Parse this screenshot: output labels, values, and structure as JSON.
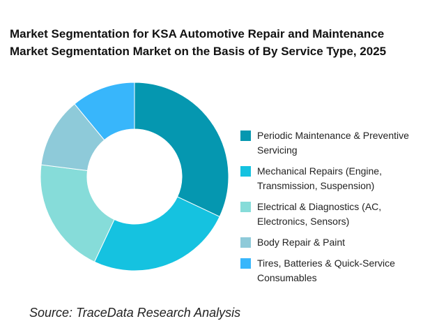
{
  "chart_data": {
    "type": "pie",
    "donut": true,
    "title_lines": [
      "Market Segmentation for KSA Automotive Repair and Maintenance",
      "Market Segmentation Market on the Basis of By Service Type, 2025"
    ],
    "categories": [
      "Periodic Maintenance & Preventive Servicing",
      "Mechanical Repairs (Engine, Transmission, Suspension)",
      "Electrical & Diagnostics (AC, Electronics, Sensors)",
      "Body Repair & Paint",
      "Tires, Batteries & Quick-Service Consumables"
    ],
    "legend_lines": [
      [
        "Periodic Maintenance & Preventive",
        "Servicing"
      ],
      [
        "Mechanical Repairs (Engine,",
        "Transmission, Suspension)"
      ],
      [
        "Electrical & Diagnostics (AC,",
        "Electronics, Sensors)"
      ],
      [
        "Body Repair & Paint"
      ],
      [
        "Tires, Batteries & Quick-Service",
        "Consumables"
      ]
    ],
    "values": [
      32,
      25,
      20,
      12,
      11
    ],
    "colors": [
      "#0597b0",
      "#15c2e0",
      "#86dcd9",
      "#8ecad9",
      "#38b6fb"
    ],
    "legend_position": "right",
    "start_angle": "top, clockwise"
  },
  "source": "Source: TraceData Research Analysis"
}
